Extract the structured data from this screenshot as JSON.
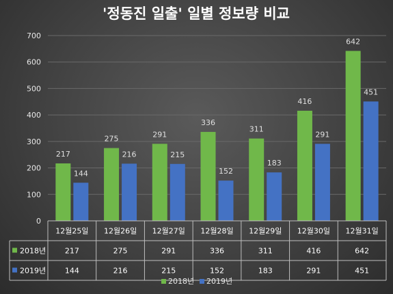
{
  "chart_data": {
    "type": "bar",
    "title": "'정동진 일출' 일별 정보량 비교",
    "categories": [
      "12월25일",
      "12월26일",
      "12월27일",
      "12월28일",
      "12월29일",
      "12월30일",
      "12월31일"
    ],
    "series": [
      {
        "name": "2018년",
        "values": [
          217,
          275,
          291,
          336,
          311,
          416,
          642
        ],
        "color": "#70b84a"
      },
      {
        "name": "2019년",
        "values": [
          144,
          216,
          215,
          152,
          183,
          291,
          451
        ],
        "color": "#4472c4"
      }
    ],
    "ylim": [
      0,
      700
    ],
    "yticks": [
      "0",
      "100",
      "200",
      "300",
      "400",
      "500",
      "600",
      "700"
    ],
    "grid": true,
    "data_table": true,
    "legend_position": "bottom"
  }
}
